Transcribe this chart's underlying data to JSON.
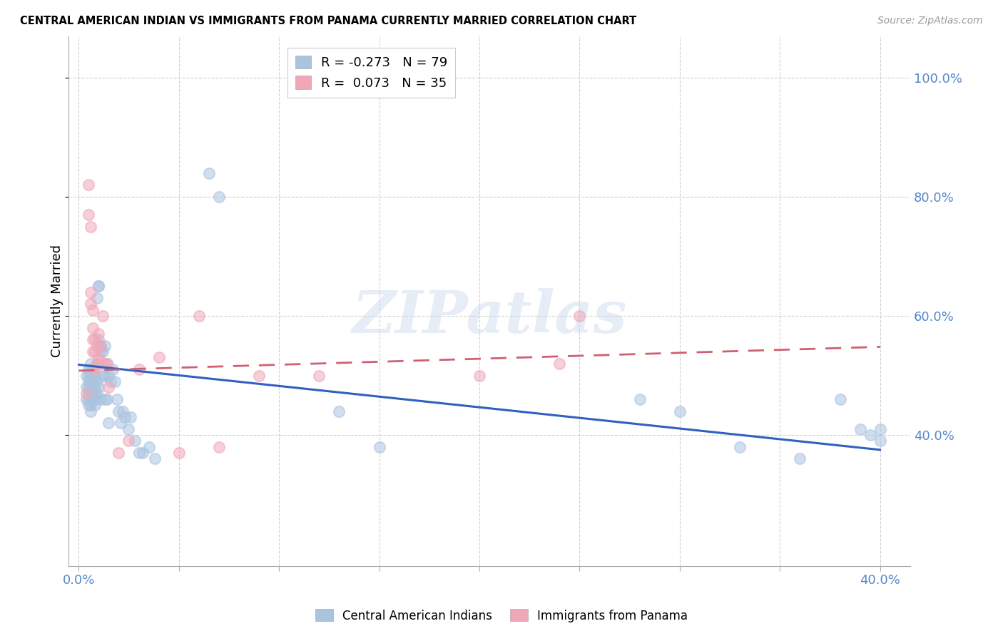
{
  "title": "CENTRAL AMERICAN INDIAN VS IMMIGRANTS FROM PANAMA CURRENTLY MARRIED CORRELATION CHART",
  "source": "Source: ZipAtlas.com",
  "ylabel": "Currently Married",
  "legend_entry1_r": "R = -0.273",
  "legend_entry1_n": "N = 79",
  "legend_entry2_r": "R =  0.073",
  "legend_entry2_n": "N = 35",
  "watermark": "ZIPatlas",
  "blue_color": "#aac4e0",
  "pink_color": "#f0a8b8",
  "blue_line_color": "#3060c0",
  "pink_line_color": "#d06070",
  "axis_label_color": "#5588cc",
  "blue_scatter_x": [
    0.004,
    0.004,
    0.004,
    0.005,
    0.005,
    0.005,
    0.005,
    0.005,
    0.005,
    0.005,
    0.006,
    0.006,
    0.006,
    0.006,
    0.006,
    0.006,
    0.006,
    0.006,
    0.006,
    0.007,
    0.007,
    0.007,
    0.007,
    0.007,
    0.007,
    0.008,
    0.008,
    0.008,
    0.008,
    0.008,
    0.008,
    0.009,
    0.009,
    0.009,
    0.009,
    0.01,
    0.01,
    0.01,
    0.01,
    0.011,
    0.011,
    0.011,
    0.012,
    0.012,
    0.013,
    0.013,
    0.013,
    0.014,
    0.014,
    0.015,
    0.015,
    0.016,
    0.017,
    0.018,
    0.019,
    0.02,
    0.021,
    0.022,
    0.023,
    0.025,
    0.026,
    0.028,
    0.03,
    0.032,
    0.035,
    0.038,
    0.065,
    0.07,
    0.13,
    0.15,
    0.28,
    0.3,
    0.33,
    0.36,
    0.38,
    0.39,
    0.395,
    0.4,
    0.4
  ],
  "blue_scatter_y": [
    0.5,
    0.48,
    0.46,
    0.51,
    0.5,
    0.49,
    0.48,
    0.47,
    0.46,
    0.45,
    0.52,
    0.51,
    0.5,
    0.49,
    0.48,
    0.47,
    0.46,
    0.45,
    0.44,
    0.51,
    0.5,
    0.49,
    0.48,
    0.47,
    0.46,
    0.5,
    0.49,
    0.48,
    0.47,
    0.46,
    0.45,
    0.63,
    0.52,
    0.49,
    0.47,
    0.65,
    0.65,
    0.56,
    0.48,
    0.55,
    0.54,
    0.46,
    0.54,
    0.5,
    0.55,
    0.5,
    0.46,
    0.52,
    0.46,
    0.5,
    0.42,
    0.49,
    0.51,
    0.49,
    0.46,
    0.44,
    0.42,
    0.44,
    0.43,
    0.41,
    0.43,
    0.39,
    0.37,
    0.37,
    0.38,
    0.36,
    0.84,
    0.8,
    0.44,
    0.38,
    0.46,
    0.44,
    0.38,
    0.36,
    0.46,
    0.41,
    0.4,
    0.41,
    0.39
  ],
  "pink_scatter_x": [
    0.004,
    0.005,
    0.005,
    0.006,
    0.006,
    0.006,
    0.007,
    0.007,
    0.007,
    0.007,
    0.008,
    0.008,
    0.008,
    0.009,
    0.009,
    0.01,
    0.01,
    0.011,
    0.011,
    0.012,
    0.013,
    0.014,
    0.015,
    0.02,
    0.025,
    0.03,
    0.04,
    0.05,
    0.06,
    0.07,
    0.09,
    0.12,
    0.2,
    0.24,
    0.25
  ],
  "pink_scatter_y": [
    0.47,
    0.82,
    0.77,
    0.75,
    0.64,
    0.62,
    0.61,
    0.58,
    0.56,
    0.54,
    0.56,
    0.54,
    0.51,
    0.55,
    0.52,
    0.57,
    0.53,
    0.55,
    0.52,
    0.6,
    0.52,
    0.52,
    0.48,
    0.37,
    0.39,
    0.51,
    0.53,
    0.37,
    0.6,
    0.38,
    0.5,
    0.5,
    0.5,
    0.52,
    0.6
  ],
  "blue_trend_x": [
    0.0,
    0.4
  ],
  "blue_trend_y": [
    0.518,
    0.375
  ],
  "pink_trend_x": [
    0.0,
    0.4
  ],
  "pink_trend_y": [
    0.508,
    0.548
  ],
  "xlim": [
    -0.005,
    0.415
  ],
  "ylim": [
    0.18,
    1.07
  ],
  "ytick_vals": [
    0.4,
    0.6,
    0.8,
    1.0
  ],
  "ytick_labels": [
    "40.0%",
    "60.0%",
    "80.0%",
    "100.0%"
  ],
  "grid_color": "#cccccc",
  "background_color": "#ffffff",
  "legend_color_blue": "#aac4e0",
  "legend_color_pink": "#f0a8b8"
}
